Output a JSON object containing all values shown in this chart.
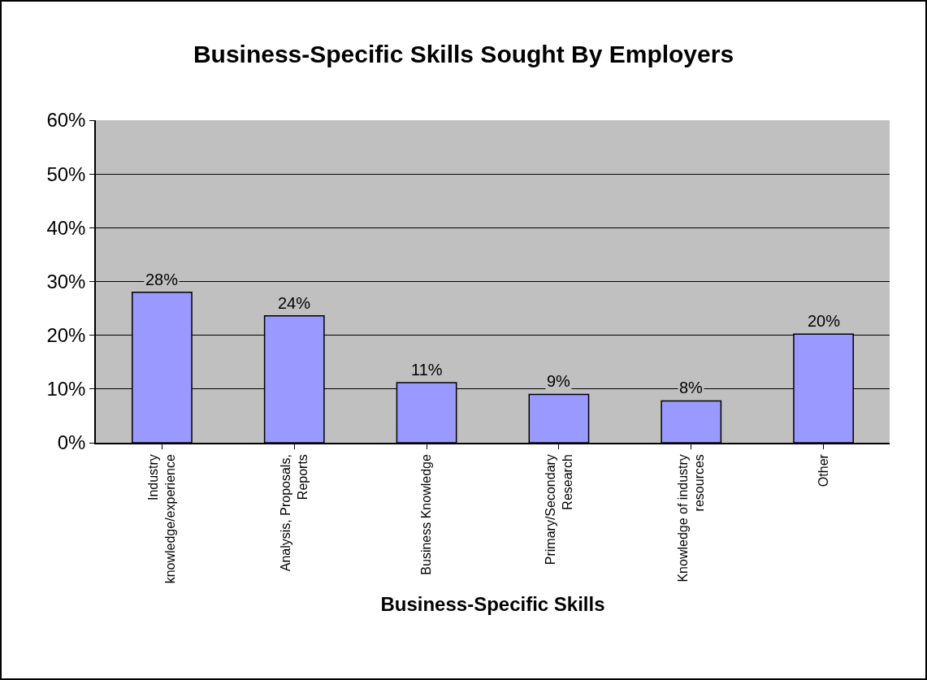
{
  "chart_data": {
    "type": "bar",
    "title": "Business-Specific Skills Sought By Employers",
    "xlabel": "Business-Specific Skills",
    "categories": [
      "Industry knowledge/experience",
      "Analysis, Proposals, Reports",
      "Business Knowledge",
      "Primary/Secondary Research",
      "Knowledge of industry resources",
      "Other"
    ],
    "values": [
      28,
      23.6,
      11.2,
      9,
      7.8,
      20.2
    ],
    "value_labels": [
      "28%",
      "24%",
      "11%",
      "9%",
      "8%",
      "20%"
    ],
    "color": "#9999ff",
    "ylim": [
      0,
      60
    ],
    "yticks": [
      {
        "value": 0,
        "label": "0%"
      },
      {
        "value": 10,
        "label": "10%"
      },
      {
        "value": 20,
        "label": "20%"
      },
      {
        "value": 30,
        "label": "30%"
      },
      {
        "value": 40,
        "label": "40%"
      },
      {
        "value": 50,
        "label": "50%"
      },
      {
        "value": 60,
        "label": "60%"
      }
    ],
    "grid": "y"
  }
}
